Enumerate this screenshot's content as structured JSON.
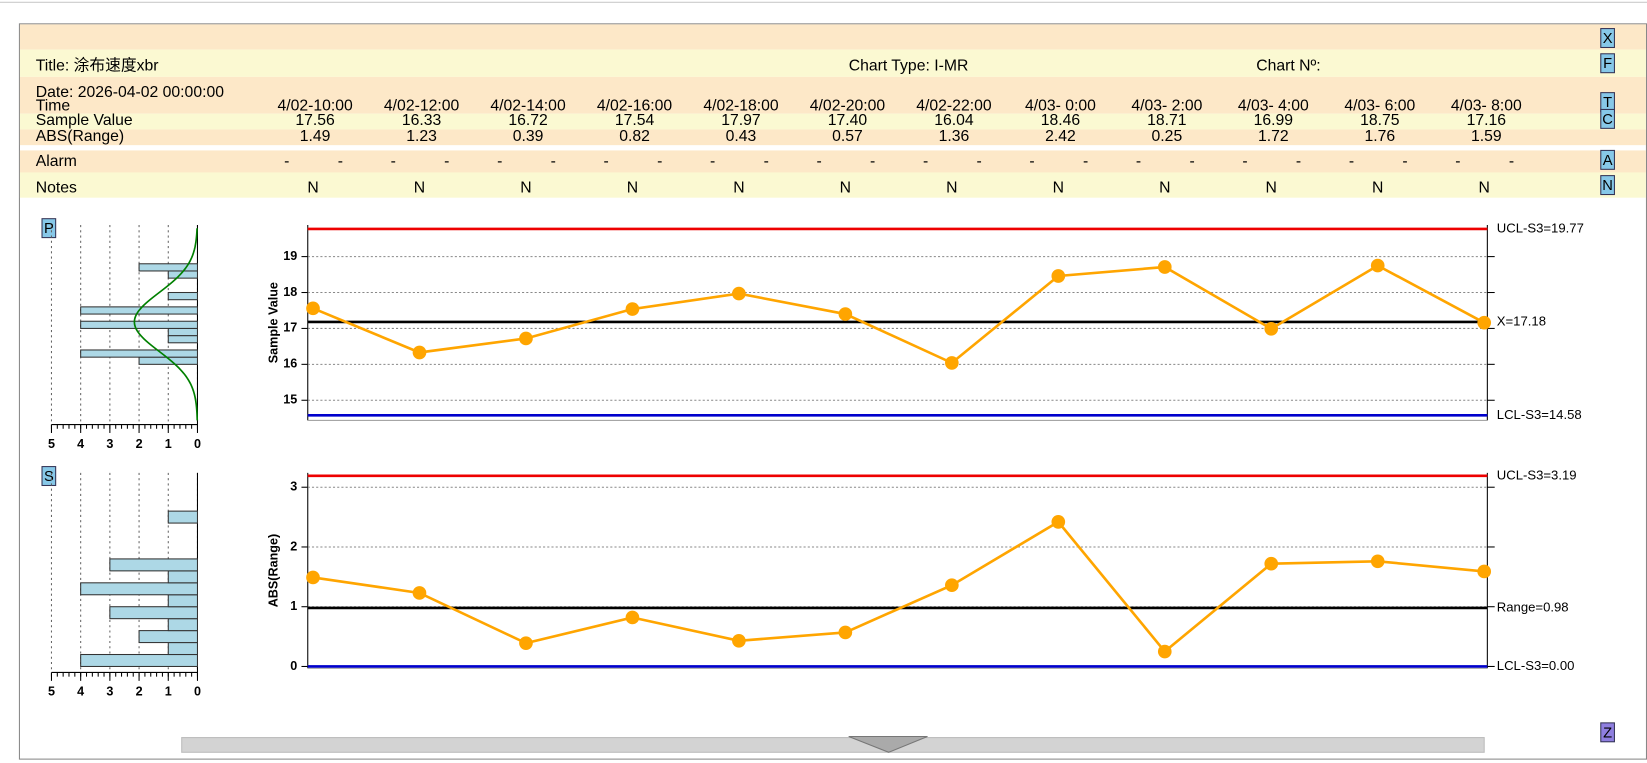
{
  "header": {
    "title": "Title: 涂布速度xbr",
    "chart_type": "Chart Type: I-MR",
    "chart_no": "Chart Nº:",
    "date": "Date: 2026-04-02 00:00:00"
  },
  "table": {
    "row_labels": {
      "time": "Time",
      "sample": "Sample Value",
      "range": "ABS(Range)",
      "alarm": "Alarm",
      "notes": "Notes"
    },
    "times": [
      "4/02-10:00",
      "4/02-12:00",
      "4/02-14:00",
      "4/02-16:00",
      "4/02-18:00",
      "4/02-20:00",
      "4/02-22:00",
      "4/03- 0:00",
      "4/03- 2:00",
      "4/03- 4:00",
      "4/03- 6:00",
      "4/03- 8:00"
    ],
    "alarm": [
      [
        "-",
        "-"
      ],
      [
        "-",
        "-"
      ],
      [
        "-",
        "-"
      ],
      [
        "-",
        "-"
      ],
      [
        "-",
        "-"
      ],
      [
        "-",
        "-"
      ],
      [
        "-",
        "-"
      ],
      [
        "-",
        "-"
      ],
      [
        "-",
        "-"
      ],
      [
        "-",
        "-"
      ],
      [
        "-",
        "-"
      ],
      [
        "-",
        "-"
      ]
    ],
    "notes": [
      "N",
      "N",
      "N",
      "N",
      "N",
      "N",
      "N",
      "N",
      "N",
      "N",
      "N",
      "N"
    ]
  },
  "buttons": {
    "x": "X",
    "f": "F",
    "t": "T",
    "c": "C",
    "a": "A",
    "n": "N",
    "p": "P",
    "s": "S",
    "z": "Z"
  },
  "chart_data": [
    {
      "type": "line",
      "y_label": "Sample Value",
      "color": "#ffa500",
      "values": [
        17.56,
        16.33,
        16.72,
        17.54,
        17.97,
        17.4,
        16.04,
        18.46,
        18.71,
        16.99,
        18.75,
        17.16
      ],
      "value_labels": [
        "17.56",
        "16.33",
        "16.72",
        "17.54",
        "17.97",
        "17.40",
        "16.04",
        "18.46",
        "18.71",
        "16.99",
        "18.75",
        "17.16"
      ],
      "ylim": [
        14.44,
        19.88
      ],
      "yticks": [
        15,
        16,
        17,
        18,
        19
      ],
      "grid": true,
      "control_lines": [
        {
          "value": 19.77,
          "label": "UCL-S3=19.77",
          "color": "#ee0000"
        },
        {
          "value": 17.18,
          "label": "X=17.18",
          "color": "#000000"
        },
        {
          "value": 14.58,
          "label": "LCL-S3=14.58",
          "color": "#0000cc"
        }
      ]
    },
    {
      "type": "line",
      "y_label": "ABS(Range)",
      "color": "#ffa500",
      "values": [
        1.49,
        1.23,
        0.39,
        0.82,
        0.43,
        0.57,
        1.36,
        2.42,
        0.25,
        1.72,
        1.76,
        1.59
      ],
      "value_labels": [
        "1.49",
        "1.23",
        "0.39",
        "0.82",
        "0.43",
        "0.57",
        "1.36",
        "2.42",
        "0.25",
        "1.72",
        "1.76",
        "1.59"
      ],
      "ylim": [
        -0.03,
        3.24
      ],
      "yticks": [
        0,
        1,
        2,
        3
      ],
      "grid": true,
      "control_lines": [
        {
          "value": 3.19,
          "label": "UCL-S3=3.19",
          "color": "#ee0000"
        },
        {
          "value": 0.98,
          "label": "Range=0.98",
          "color": "#000000"
        },
        {
          "value": 0,
          "label": "LCL-S3=0.00",
          "color": "#0000cc"
        }
      ]
    },
    {
      "type": "histogram",
      "color": "#add8e6",
      "bins": [
        16.0,
        16.2,
        16.4,
        16.6,
        16.8,
        17.0,
        17.2,
        17.4,
        17.6,
        17.8,
        18.0,
        18.2,
        18.4,
        18.6,
        18.8
      ],
      "counts": [
        2,
        4,
        0,
        1,
        1,
        4,
        0,
        4,
        0,
        1,
        0,
        0,
        1,
        2
      ],
      "xlim": [
        5,
        0
      ],
      "xticks": [
        5,
        4,
        3,
        2,
        1,
        0
      ],
      "curve": {
        "mean": 17.18,
        "sd": 0.82,
        "peak": 2.16,
        "color": "#008000"
      }
    },
    {
      "type": "histogram",
      "color": "#add8e6",
      "bins": [
        0,
        0.2,
        0.4,
        0.6,
        0.8,
        1.0,
        1.2,
        1.4,
        1.6,
        1.8,
        2.0,
        2.2,
        2.4,
        2.6
      ],
      "counts": [
        4,
        1,
        2,
        1,
        3,
        1,
        4,
        1,
        3,
        0,
        0,
        0,
        1
      ],
      "xlim": [
        5,
        0
      ],
      "xticks": [
        5,
        4,
        3,
        2,
        1,
        0
      ]
    }
  ]
}
